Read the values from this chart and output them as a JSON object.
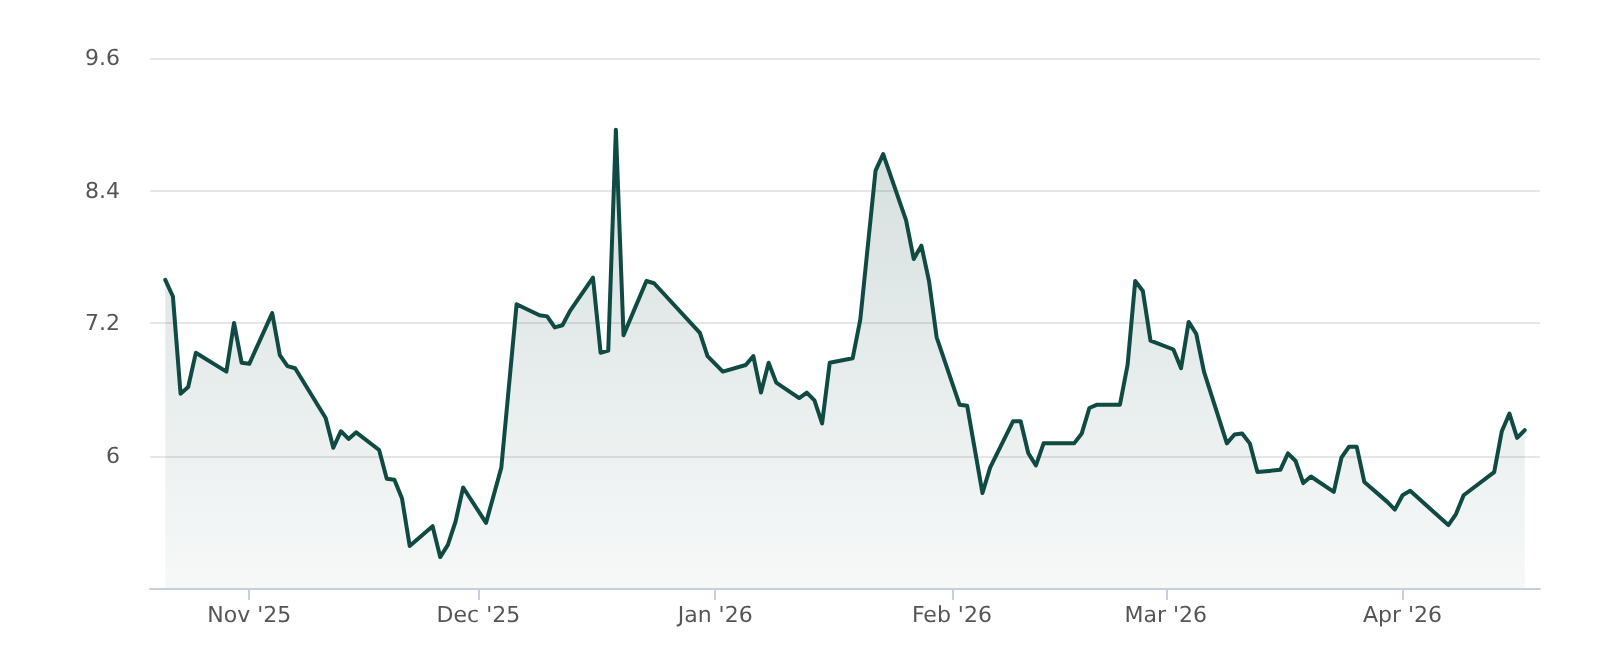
{
  "chart_data": {
    "type": "area",
    "x": [
      "2025-10-21",
      "2025-10-22",
      "2025-10-23",
      "2025-10-24",
      "2025-10-25",
      "2025-10-29",
      "2025-10-30",
      "2025-10-31",
      "2025-11-01",
      "2025-11-04",
      "2025-11-05",
      "2025-11-06",
      "2025-11-07",
      "2025-11-11",
      "2025-11-12",
      "2025-11-13",
      "2025-11-14",
      "2025-11-15",
      "2025-11-18",
      "2025-11-19",
      "2025-11-20",
      "2025-11-21",
      "2025-11-22",
      "2025-11-25",
      "2025-11-26",
      "2025-11-27",
      "2025-11-28",
      "2025-11-29",
      "2025-12-02",
      "2025-12-04",
      "2025-12-06",
      "2025-12-09",
      "2025-12-10",
      "2025-12-11",
      "2025-12-12",
      "2025-12-13",
      "2025-12-16",
      "2025-12-17",
      "2025-12-18",
      "2025-12-19",
      "2025-12-20",
      "2025-12-23",
      "2025-12-24",
      "2025-12-30",
      "2025-12-31",
      "2026-01-02",
      "2026-01-05",
      "2026-01-06",
      "2026-01-07",
      "2026-01-08",
      "2026-01-09",
      "2026-01-12",
      "2026-01-13",
      "2026-01-14",
      "2026-01-15",
      "2026-01-16",
      "2026-01-19",
      "2026-01-20",
      "2026-01-22",
      "2026-01-23",
      "2026-01-26",
      "2026-01-27",
      "2026-01-28",
      "2026-01-29",
      "2026-01-30",
      "2026-02-02",
      "2026-02-03",
      "2026-02-05",
      "2026-02-06",
      "2026-02-09",
      "2026-02-10",
      "2026-02-11",
      "2026-02-12",
      "2026-02-13",
      "2026-02-17",
      "2026-02-18",
      "2026-02-19",
      "2026-02-20",
      "2026-02-23",
      "2026-02-24",
      "2026-02-25",
      "2026-02-26",
      "2026-02-27",
      "2026-03-02",
      "2026-03-03",
      "2026-03-04",
      "2026-03-05",
      "2026-03-06",
      "2026-03-09",
      "2026-03-10",
      "2026-03-11",
      "2026-03-12",
      "2026-03-13",
      "2026-03-16",
      "2026-03-17",
      "2026-03-18",
      "2026-03-19",
      "2026-03-20",
      "2026-03-23",
      "2026-03-24",
      "2026-03-25",
      "2026-03-26",
      "2026-03-27",
      "2026-03-30",
      "2026-03-31",
      "2026-04-01",
      "2026-04-02",
      "2026-04-07",
      "2026-04-08",
      "2026-04-09",
      "2026-04-13",
      "2026-04-14",
      "2026-04-15",
      "2026-04-16",
      "2026-04-17"
    ],
    "series": [
      {
        "color": "#0f4a43",
        "values": [
          7.59,
          7.44,
          6.56,
          6.62,
          6.93,
          6.76,
          7.2,
          6.84,
          6.83,
          7.29,
          6.91,
          6.81,
          6.79,
          6.34,
          6.07,
          6.22,
          6.15,
          6.21,
          6.05,
          5.79,
          5.78,
          5.61,
          5.18,
          5.36,
          5.08,
          5.19,
          5.4,
          5.71,
          5.39,
          5.89,
          7.37,
          7.27,
          7.26,
          7.16,
          7.18,
          7.31,
          7.61,
          6.93,
          6.95,
          8.95,
          7.09,
          7.58,
          7.56,
          7.11,
          6.9,
          6.76,
          6.82,
          6.9,
          6.57,
          6.84,
          6.66,
          6.52,
          6.57,
          6.5,
          6.29,
          6.84,
          6.88,
          7.23,
          8.58,
          8.73,
          8.13,
          7.78,
          7.9,
          7.58,
          7.07,
          6.46,
          6.45,
          5.66,
          5.89,
          6.31,
          6.31,
          6.02,
          5.91,
          6.11,
          6.11,
          6.2,
          6.43,
          6.46,
          6.46,
          6.82,
          7.58,
          7.49,
          7.04,
          6.96,
          6.79,
          7.21,
          7.1,
          6.76,
          6.11,
          6.19,
          6.2,
          6.11,
          5.85,
          5.87,
          6.02,
          5.95,
          5.75,
          5.81,
          5.67,
          5.98,
          6.08,
          6.08,
          5.76,
          5.58,
          5.51,
          5.64,
          5.68,
          5.37,
          5.47,
          5.64,
          5.85,
          6.22,
          6.38,
          6.16,
          6.23
        ]
      }
    ],
    "xlim": [
      "2025-10-19",
      "2026-04-19"
    ],
    "xticks": [
      {
        "value": "2025-11-01",
        "label": "Nov '25"
      },
      {
        "value": "2025-12-01",
        "label": "Dec '25"
      },
      {
        "value": "2026-01-01",
        "label": "Jan '26"
      },
      {
        "value": "2026-02-01",
        "label": "Feb '26"
      },
      {
        "value": "2026-03-01",
        "label": "Mar '26"
      },
      {
        "value": "2026-04-01",
        "label": "Apr '26"
      }
    ],
    "ylim": [
      4.8,
      9.6
    ],
    "yticks": [
      {
        "value": 4.8,
        "label": null
      },
      6,
      7.2,
      8.4,
      9.6
    ],
    "grid": "y",
    "marker": "none",
    "line_style": "solid"
  }
}
